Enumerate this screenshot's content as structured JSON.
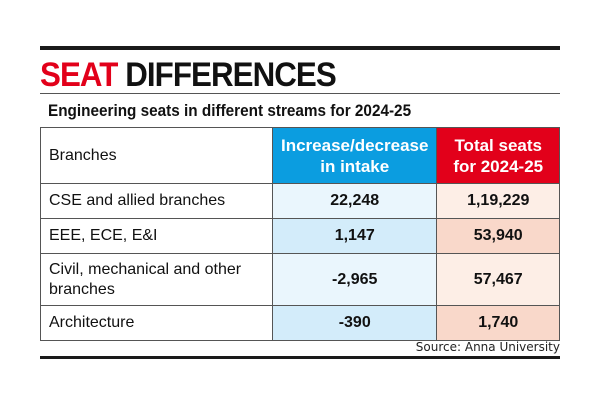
{
  "title": {
    "part1": "SEAT",
    "part2": "DIFFERENCES"
  },
  "subtitle": "Engineering seats in different streams for 2024-25",
  "table": {
    "headers": [
      "Branches",
      "Increase/decrease in intake",
      "Total seats for 2024-25"
    ],
    "rows": [
      {
        "branch": "CSE and allied branches",
        "change": "22,248",
        "total": "1,19,229"
      },
      {
        "branch": "EEE, ECE, E&I",
        "change": "1,147",
        "total": "53,940"
      },
      {
        "branch": "Civil, mechanical and other branches",
        "change": "-2,965",
        "total": "57,467"
      },
      {
        "branch": "Architecture",
        "change": "-390",
        "total": "1,740"
      }
    ]
  },
  "source": "Source: Anna University",
  "colors": {
    "accent_red": "#e2001a",
    "accent_blue": "#0b9de0"
  }
}
